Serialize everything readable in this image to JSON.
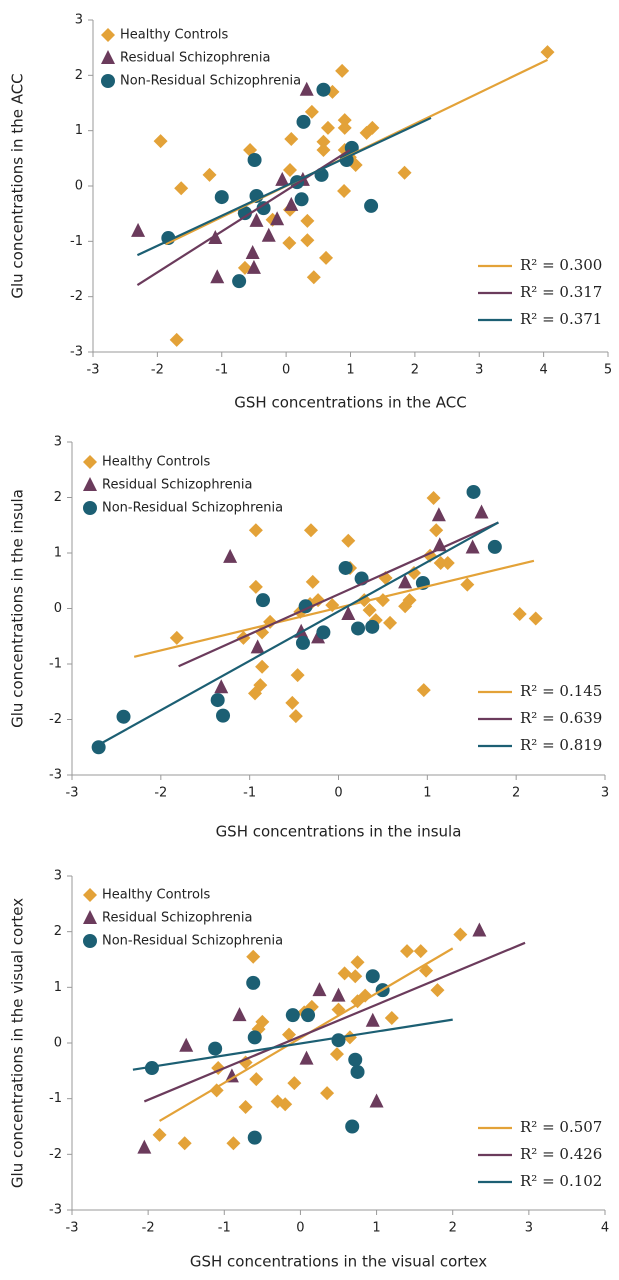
{
  "chart_data": [
    {
      "type": "scatter",
      "x_label": "GSH concentrations in the ACC",
      "y_label": "Glu concentrations in the ACC",
      "xlim": [
        -3,
        5
      ],
      "ylim": [
        -3,
        3
      ],
      "xticks": [
        -3,
        -2,
        -1,
        0,
        1,
        2,
        3,
        4,
        5
      ],
      "yticks": [
        -3,
        -2,
        -1,
        0,
        1,
        2,
        3
      ],
      "series": [
        {
          "name": "Healthy Controls",
          "color": "#e3a238",
          "marker": "diamond",
          "x": [
            4.06,
            -1.95,
            -1.63,
            -1.7,
            -1.19,
            -0.56,
            -0.65,
            -0.64,
            0.08,
            0.06,
            0.06,
            0.05,
            -0.21,
            0.33,
            0.33,
            0.43,
            0.4,
            0.58,
            0.58,
            0.65,
            0.62,
            0.72,
            0.87,
            0.91,
            0.91,
            0.9,
            0.91,
            1.08,
            1.25,
            1.34,
            1.84,
            0.99
          ],
          "y": [
            2.42,
            0.81,
            -0.04,
            -2.78,
            0.2,
            0.65,
            -0.49,
            -1.48,
            0.85,
            0.29,
            -0.43,
            -1.03,
            -0.61,
            -0.63,
            -0.98,
            -1.65,
            1.34,
            0.8,
            0.65,
            1.05,
            -1.3,
            1.7,
            2.08,
            1.19,
            1.05,
            -0.09,
            0.65,
            0.38,
            0.96,
            1.05,
            0.24,
            0.52
          ]
        },
        {
          "name": "Residual Schizophrenia",
          "color": "#6b3b5c",
          "marker": "triangle",
          "x": [
            -2.3,
            -1.1,
            -1.07,
            -0.52,
            -0.5,
            -0.46,
            -0.27,
            -0.14,
            -0.06,
            0.08,
            0.26,
            0.32
          ],
          "y": [
            -0.81,
            -0.94,
            -1.65,
            -1.21,
            -1.48,
            -0.63,
            -0.9,
            -0.6,
            0.11,
            -0.34,
            0.11,
            1.74
          ]
        },
        {
          "name": "Non-Residual Schizophrenia",
          "color": "#1c5f73",
          "marker": "circle",
          "x": [
            -1.83,
            -1.0,
            -0.73,
            -0.64,
            -0.49,
            -0.46,
            -0.35,
            0.17,
            0.24,
            0.27,
            0.55,
            0.58,
            0.94,
            1.02,
            1.32
          ],
          "y": [
            -0.94,
            -0.2,
            -1.72,
            -0.49,
            0.47,
            -0.18,
            -0.4,
            0.07,
            -0.24,
            1.16,
            0.2,
            1.74,
            0.47,
            0.69,
            -0.36
          ]
        }
      ],
      "fits": [
        {
          "label": "R² = 0.300",
          "color": "#e3a238",
          "x": [
            -1.87,
            4.06
          ],
          "y": [
            -1.05,
            2.28
          ]
        },
        {
          "label": "R² = 0.317",
          "color": "#6b3b5c",
          "x": [
            -2.31,
            0.99
          ],
          "y": [
            -1.79,
            0.65
          ]
        },
        {
          "label": "R² = 0.371",
          "color": "#1c5f73",
          "x": [
            -2.31,
            2.25
          ],
          "y": [
            -1.25,
            1.23
          ]
        }
      ]
    },
    {
      "type": "scatter",
      "x_label": "GSH concentrations in the insula",
      "y_label": "Glu concentrations in the insula",
      "xlim": [
        -3,
        3
      ],
      "ylim": [
        -3,
        3
      ],
      "xticks": [
        -3,
        -2,
        -1,
        0,
        1,
        2,
        3
      ],
      "yticks": [
        -3,
        -2,
        -1,
        0,
        1,
        2,
        3
      ],
      "series": [
        {
          "name": "Healthy Controls",
          "color": "#e3a238",
          "marker": "diamond",
          "x": [
            -1.82,
            -0.93,
            -0.31,
            -0.93,
            -1.07,
            -0.86,
            -0.77,
            -0.88,
            -0.86,
            -0.94,
            -0.52,
            -0.48,
            -0.46,
            -0.43,
            -0.32,
            -0.29,
            -0.23,
            -0.07,
            0.11,
            0.13,
            0.29,
            0.35,
            0.42,
            0.5,
            0.53,
            0.58,
            0.75,
            0.8,
            0.85,
            1.03,
            1.07,
            1.1,
            1.15,
            1.23,
            0.96,
            1.45,
            2.04,
            2.22
          ],
          "y": [
            -0.53,
            1.41,
            1.41,
            0.39,
            -0.53,
            -0.43,
            -0.24,
            -1.38,
            -1.05,
            -1.53,
            -1.7,
            -1.94,
            -1.2,
            -0.06,
            0.08,
            0.48,
            0.15,
            0.06,
            1.22,
            0.73,
            0.15,
            -0.03,
            -0.21,
            0.15,
            0.55,
            -0.26,
            0.04,
            0.15,
            0.64,
            0.95,
            1.99,
            1.41,
            0.82,
            0.82,
            -1.47,
            0.43,
            -0.1,
            -0.18
          ]
        },
        {
          "name": "Residual Schizophrenia",
          "color": "#6b3b5c",
          "marker": "triangle",
          "x": [
            -1.22,
            -1.32,
            -0.91,
            -0.42,
            -0.23,
            0.11,
            0.75,
            1.13,
            1.14,
            1.51,
            1.61
          ],
          "y": [
            0.93,
            -1.42,
            -0.7,
            -0.42,
            -0.52,
            -0.1,
            0.47,
            1.68,
            1.14,
            1.1,
            1.73
          ]
        },
        {
          "name": "Non-Residual Schizophrenia",
          "color": "#1c5f73",
          "marker": "circle",
          "x": [
            -2.7,
            -2.42,
            -1.36,
            -1.3,
            -0.85,
            -0.37,
            -0.4,
            -0.17,
            0.08,
            0.22,
            0.26,
            0.38,
            0.95,
            1.52,
            1.76
          ],
          "y": [
            -2.5,
            -1.95,
            -1.65,
            -1.93,
            0.15,
            0.04,
            -0.62,
            -0.43,
            0.73,
            -0.36,
            0.54,
            -0.33,
            0.46,
            2.1,
            1.11
          ]
        }
      ],
      "fits": [
        {
          "label": "R² = 0.145",
          "color": "#e3a238",
          "x": [
            -2.3,
            2.2
          ],
          "y": [
            -0.87,
            0.86
          ]
        },
        {
          "label": "R² = 0.639",
          "color": "#6b3b5c",
          "x": [
            -1.8,
            1.8
          ],
          "y": [
            -1.04,
            1.55
          ]
        },
        {
          "label": "R² = 0.819",
          "color": "#1c5f73",
          "x": [
            -2.75,
            1.8
          ],
          "y": [
            -2.5,
            1.55
          ]
        }
      ]
    },
    {
      "type": "scatter",
      "x_label": "GSH concentrations in the visual cortex",
      "y_label": "Glu concentrations in the visual cortex",
      "xlim": [
        -3,
        4
      ],
      "ylim": [
        -3,
        3
      ],
      "xticks": [
        -3,
        -2,
        -1,
        0,
        1,
        2,
        3,
        4
      ],
      "yticks": [
        -3,
        -2,
        -1,
        0,
        1,
        2,
        3
      ],
      "series": [
        {
          "name": "Healthy Controls",
          "color": "#e3a238",
          "marker": "diamond",
          "x": [
            -1.85,
            -1.52,
            -1.1,
            -1.08,
            -0.88,
            -0.72,
            -0.72,
            -0.62,
            -0.58,
            -0.55,
            -0.5,
            -0.3,
            -0.2,
            -0.15,
            -0.08,
            0.05,
            0.15,
            0.35,
            0.48,
            0.5,
            0.58,
            0.65,
            0.72,
            0.75,
            0.75,
            0.85,
            1.2,
            1.4,
            1.58,
            1.65,
            1.8,
            2.1
          ],
          "y": [
            -1.65,
            -1.8,
            -0.85,
            -0.45,
            -1.8,
            -1.15,
            -0.35,
            1.55,
            -0.65,
            0.25,
            0.38,
            -1.05,
            -1.1,
            0.15,
            -0.72,
            0.55,
            0.65,
            -0.9,
            -0.2,
            0.6,
            1.25,
            0.1,
            1.2,
            1.45,
            0.75,
            0.85,
            0.45,
            1.65,
            1.65,
            1.3,
            0.95,
            1.95
          ]
        },
        {
          "name": "Residual Schizophrenia",
          "color": "#6b3b5c",
          "marker": "triangle",
          "x": [
            -2.05,
            -1.5,
            -0.9,
            -0.8,
            0.08,
            0.25,
            0.5,
            0.95,
            1.0,
            2.35
          ],
          "y": [
            -1.88,
            -0.05,
            -0.6,
            0.5,
            -0.28,
            0.95,
            0.85,
            0.4,
            -1.05,
            2.02
          ]
        },
        {
          "name": "Non-Residual Schizophrenia",
          "color": "#1c5f73",
          "marker": "circle",
          "x": [
            -1.95,
            -1.12,
            -0.62,
            -0.6,
            -0.6,
            -0.1,
            0.1,
            0.5,
            0.68,
            0.72,
            0.75,
            0.95,
            1.08
          ],
          "y": [
            -0.45,
            -0.1,
            1.08,
            -1.7,
            0.1,
            0.5,
            0.5,
            0.05,
            -1.5,
            -0.3,
            -0.52,
            1.2,
            0.95
          ]
        }
      ],
      "fits": [
        {
          "label": "R² = 0.507",
          "color": "#e3a238",
          "x": [
            -1.85,
            2.0
          ],
          "y": [
            -1.4,
            1.7
          ]
        },
        {
          "label": "R² = 0.426",
          "color": "#6b3b5c",
          "x": [
            -2.05,
            2.95
          ],
          "y": [
            -1.05,
            1.8
          ]
        },
        {
          "label": "R² = 0.102",
          "color": "#1c5f73",
          "x": [
            -2.2,
            2.0
          ],
          "y": [
            -0.48,
            0.42
          ]
        }
      ]
    }
  ]
}
